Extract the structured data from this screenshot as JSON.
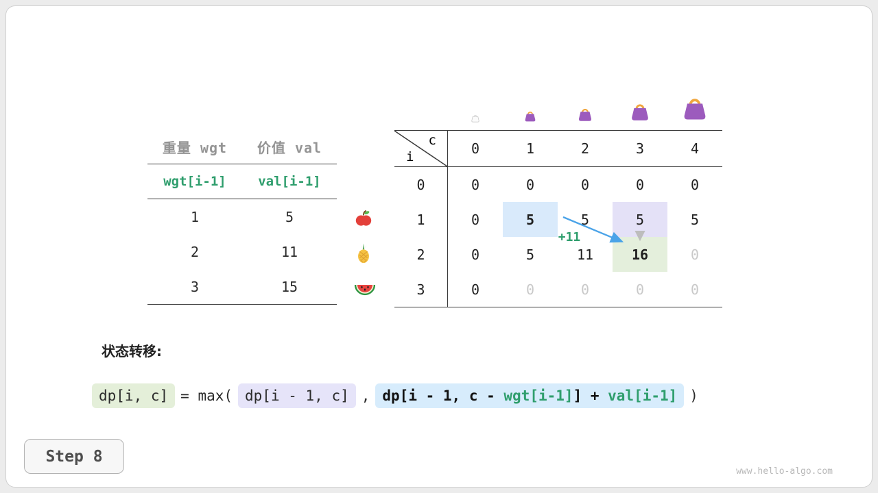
{
  "page": {
    "step_label": "Step 8",
    "watermark": "www.hello-algo.com"
  },
  "items_table": {
    "col_headers": [
      "重量 wgt",
      "价值 val"
    ],
    "formula_row": [
      "wgt[i-1]",
      "val[i-1]"
    ],
    "rows": [
      {
        "icon": "apple-icon",
        "wgt": "1",
        "val": "5"
      },
      {
        "icon": "pineapple-icon",
        "wgt": "2",
        "val": "11"
      },
      {
        "icon": "watermelon-icon",
        "wgt": "3",
        "val": "15"
      }
    ]
  },
  "dp_table": {
    "corner": {
      "top": "c",
      "bottom": "i"
    },
    "col_headers": [
      "0",
      "1",
      "2",
      "3",
      "4"
    ],
    "bag_icons": [
      "empty-bag-icon",
      "bag-size-1-icon",
      "bag-size-2-icon",
      "bag-size-3-icon",
      "bag-size-4-icon"
    ],
    "rows": [
      {
        "label": "0",
        "cells": [
          {
            "v": "0"
          },
          {
            "v": "0"
          },
          {
            "v": "0"
          },
          {
            "v": "0"
          },
          {
            "v": "0"
          }
        ]
      },
      {
        "label": "1",
        "cells": [
          {
            "v": "0"
          },
          {
            "v": "5",
            "bold": true,
            "bg": "blue"
          },
          {
            "v": "5"
          },
          {
            "v": "5",
            "bg": "lavender"
          },
          {
            "v": "5"
          }
        ]
      },
      {
        "label": "2",
        "cells": [
          {
            "v": "0"
          },
          {
            "v": "5"
          },
          {
            "v": "11"
          },
          {
            "v": "16",
            "bold": true,
            "bg": "green"
          },
          {
            "v": "0",
            "muted": true
          }
        ]
      },
      {
        "label": "3",
        "cells": [
          {
            "v": "0"
          },
          {
            "v": "0",
            "muted": true
          },
          {
            "v": "0",
            "muted": true
          },
          {
            "v": "0",
            "muted": true
          },
          {
            "v": "0",
            "muted": true
          }
        ]
      }
    ],
    "annotation": "+11"
  },
  "formula": {
    "heading": "状态转移:",
    "lhs": "dp[i, c]",
    "mid": "= max(",
    "term1": "dp[i - 1, c]",
    "comma": ",",
    "term2": {
      "part1": "dp[i - 1, c - ",
      "wgt": "wgt[i-1]",
      "part2": "] + ",
      "val": "val[i-1]"
    },
    "close": ")"
  },
  "colors": {
    "accent_green": "#2f9e6d",
    "arrow_blue": "#4aa3e8",
    "hl_blue": "#d9eafb",
    "hl_lavender": "#e4e1f7",
    "hl_green": "#e4efdc",
    "chip_green": "#e4efd9",
    "chip_lavender": "#e6e4f9",
    "chip_blue": "#d7ecfc",
    "muted_text": "#c9c9c9"
  }
}
